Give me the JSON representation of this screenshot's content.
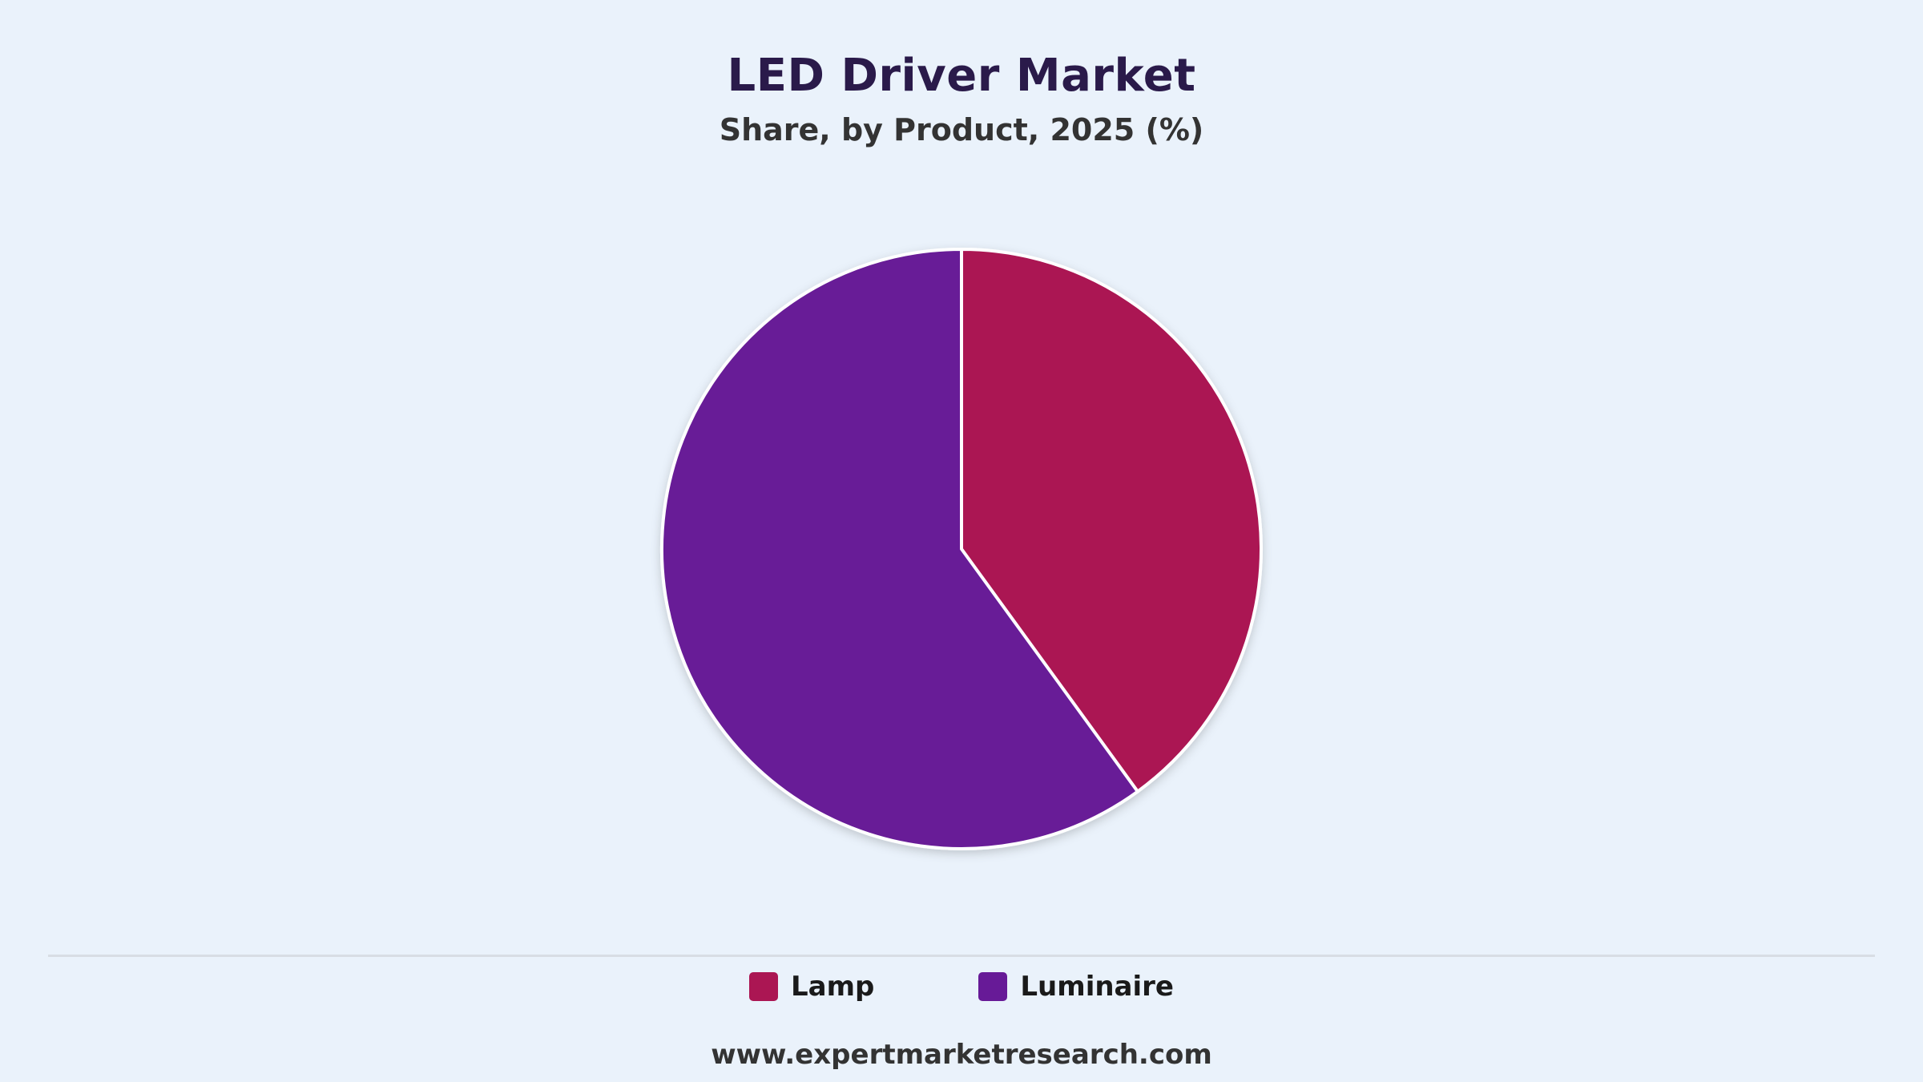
{
  "chart_data": {
    "type": "pie",
    "title": "LED Driver Market",
    "subtitle": "Share, by Product, 2025 (%)",
    "categories": [
      "Lamp",
      "Luminaire"
    ],
    "values": [
      40,
      60
    ],
    "colors": [
      "#ab1653",
      "#671a97"
    ],
    "legend_position": "bottom"
  },
  "footer": {
    "source": "www.expertmarketresearch.com"
  }
}
